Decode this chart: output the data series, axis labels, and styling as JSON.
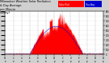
{
  "bg_color": "#d0d0d0",
  "plot_bg_color": "#ffffff",
  "bar_color": "#ff0000",
  "avg_color": "#0000cc",
  "ylim": [
    0,
    900
  ],
  "yticks": [
    0,
    100,
    200,
    300,
    400,
    500,
    600,
    700,
    800,
    900
  ],
  "num_minutes": 1440,
  "sunrise": 360,
  "sunset": 1140,
  "legend_labels": [
    "Solar Rad.",
    "Day Avg."
  ],
  "legend_colors": [
    "#ff0000",
    "#0000cc"
  ],
  "title_lines": [
    "Milwaukee Weather Solar Radiation",
    "& Day Average",
    "per Minute",
    "(Today)"
  ],
  "title_fontsize": 2.5
}
